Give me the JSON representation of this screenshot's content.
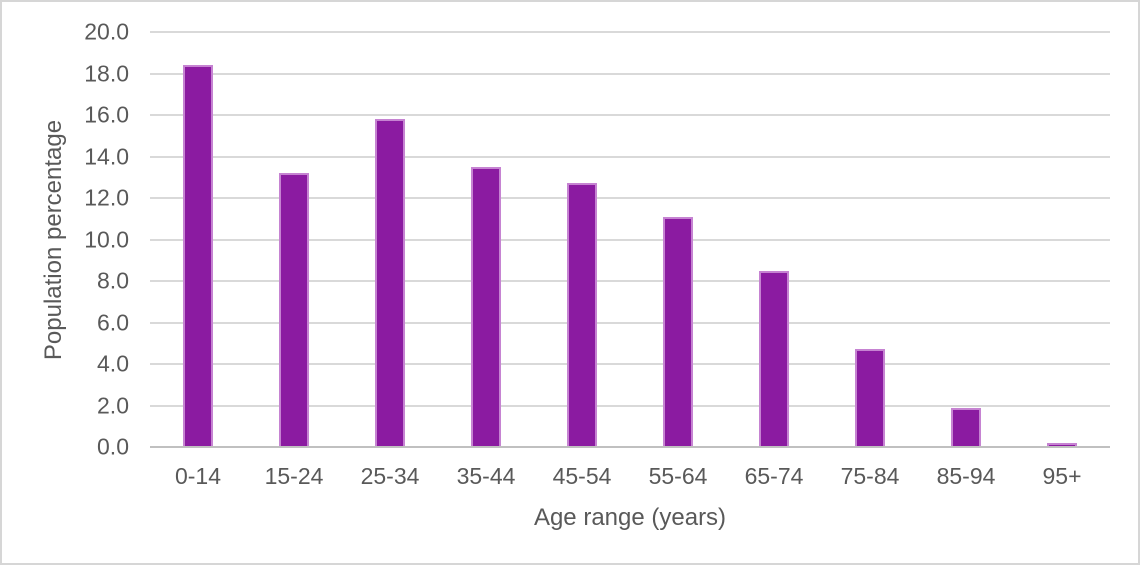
{
  "chart_data": {
    "type": "bar",
    "categories": [
      "0-14",
      "15-24",
      "25-34",
      "35-44",
      "45-54",
      "55-64",
      "65-74",
      "75-84",
      "85-94",
      "95+"
    ],
    "values": [
      18.4,
      13.2,
      15.8,
      13.5,
      12.7,
      11.1,
      8.5,
      4.7,
      1.9,
      0.2
    ],
    "xlabel": "Age range (years)",
    "ylabel": "Population percentage",
    "ylim": [
      0,
      20
    ],
    "ytick_step": 2,
    "ytick_labels": [
      "0.0",
      "2.0",
      "4.0",
      "6.0",
      "8.0",
      "10.0",
      "12.0",
      "14.0",
      "16.0",
      "18.0",
      "20.0"
    ],
    "grid": true,
    "legend_position": "none",
    "colors": {
      "bar_fill": "#8b1ba1",
      "bar_border": "#c683d2",
      "gridline": "#d9d9d9",
      "axis_line": "#c0c0c0",
      "text": "#595959",
      "frame_border": "#d6d6d6",
      "background": "#ffffff"
    }
  }
}
